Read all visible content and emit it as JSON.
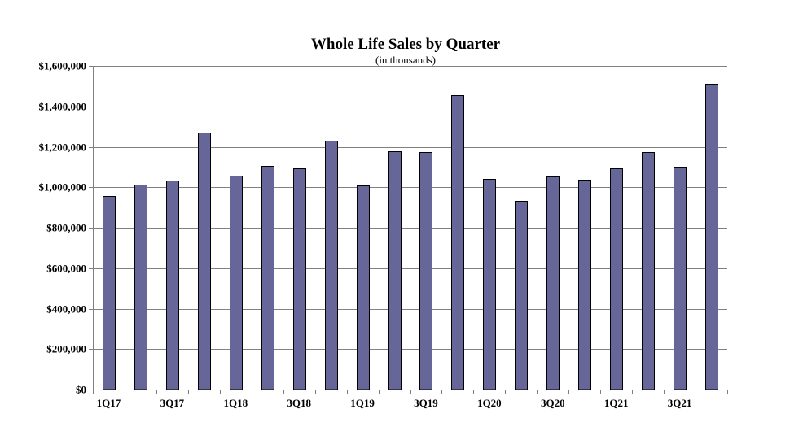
{
  "chart_data": {
    "type": "bar",
    "title": "Whole Life Sales by Quarter",
    "subtitle": "(in thousands)",
    "xlabel": "",
    "ylabel": "",
    "ylim": [
      0,
      1600000
    ],
    "y_tick_values": [
      0,
      200000,
      400000,
      600000,
      800000,
      1000000,
      1200000,
      1400000,
      1600000
    ],
    "y_tick_labels": [
      "$0",
      "$200,000",
      "$400,000",
      "$600,000",
      "$800,000",
      "$1,000,000",
      "$1,200,000",
      "$1,400,000",
      "$1,600,000"
    ],
    "categories": [
      "1Q17",
      "2Q17",
      "3Q17",
      "4Q17",
      "1Q18",
      "2Q18",
      "3Q18",
      "4Q18",
      "1Q19",
      "2Q19",
      "3Q19",
      "4Q19",
      "1Q20",
      "2Q20",
      "3Q20",
      "4Q20",
      "1Q21",
      "2Q21",
      "3Q21",
      "4Q21"
    ],
    "x_tick_labels": [
      "1Q17",
      "",
      "3Q17",
      "",
      "1Q18",
      "",
      "3Q18",
      "",
      "1Q19",
      "",
      "3Q19",
      "",
      "1Q20",
      "",
      "3Q20",
      "",
      "1Q21",
      "",
      "3Q21",
      ""
    ],
    "values": [
      958000,
      1012000,
      1033000,
      1270000,
      1058000,
      1106000,
      1093000,
      1230000,
      1010000,
      1178000,
      1173000,
      1457000,
      1042000,
      933000,
      1053000,
      1037000,
      1094000,
      1173000,
      1102000,
      1510000
    ],
    "grid": true,
    "legend": "none",
    "bar_color": "#666699",
    "bar_edge_color": "#000000",
    "grid_color": "#808080"
  }
}
